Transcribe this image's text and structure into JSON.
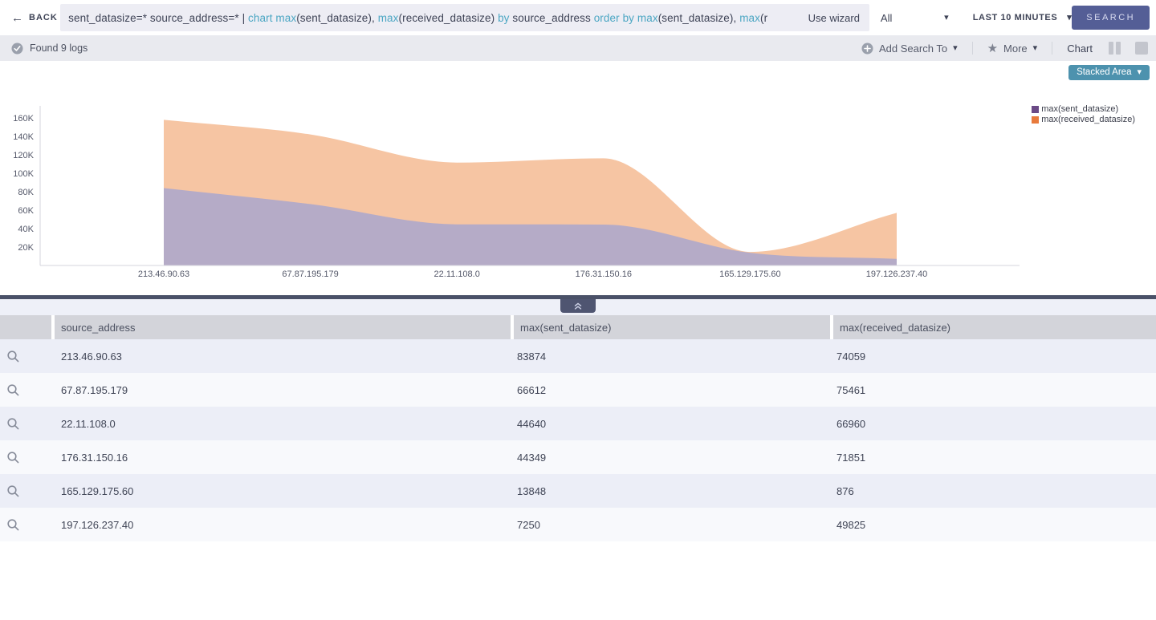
{
  "topbar": {
    "back_label": "BACK",
    "query_segments": [
      {
        "text": "sent_datasize=* source_address=* | ",
        "style": "dark"
      },
      {
        "text": "chart max",
        "style": "teal"
      },
      {
        "text": "(sent_datasize), ",
        "style": "dark"
      },
      {
        "text": "max",
        "style": "teal"
      },
      {
        "text": "(received_datasize) ",
        "style": "dark"
      },
      {
        "text": "by ",
        "style": "teal"
      },
      {
        "text": "source_address ",
        "style": "dark"
      },
      {
        "text": "order by max",
        "style": "teal"
      },
      {
        "text": "(sent_datasize), ",
        "style": "dark"
      },
      {
        "text": "max",
        "style": "teal"
      },
      {
        "text": "(r",
        "style": "dark"
      }
    ],
    "use_wizard_label": "Use wizard",
    "source_filter_value": "All",
    "time_range_value": "LAST 10 MINUTES",
    "search_button_label": "SEARCH"
  },
  "results_bar": {
    "status_text": "Found 9 logs",
    "add_search_to_label": "Add Search To",
    "more_label": "More",
    "view_label": "Chart"
  },
  "chart": {
    "type_selector_label": "Stacked Area"
  },
  "chart_data": {
    "type": "area",
    "stacked": true,
    "title": "",
    "xlabel": "",
    "ylabel": "",
    "grid": false,
    "legend_position": "top-right",
    "categories": [
      "213.46.90.63",
      "67.87.195.179",
      "22.11.108.0",
      "176.31.150.16",
      "165.129.175.60",
      "197.126.237.40"
    ],
    "series": [
      {
        "name": "max(sent_datasize)",
        "values": [
          83874,
          66612,
          44640,
          44349,
          13848,
          7250
        ],
        "legend_color": "#6b4a86",
        "fill_color": "#b5abc7"
      },
      {
        "name": "max(received_datasize)",
        "values": [
          74059,
          75461,
          66960,
          71851,
          876,
          49825
        ],
        "legend_color": "#e87a3c",
        "fill_color": "#f6c5a3"
      }
    ],
    "ylim": [
      0,
      175000
    ],
    "y_ticks": [
      {
        "value": 20000,
        "label": "20K"
      },
      {
        "value": 40000,
        "label": "40K"
      },
      {
        "value": 60000,
        "label": "60K"
      },
      {
        "value": 80000,
        "label": "80K"
      },
      {
        "value": 100000,
        "label": "100K"
      },
      {
        "value": 120000,
        "label": "120K"
      },
      {
        "value": 140000,
        "label": "140K"
      },
      {
        "value": 160000,
        "label": "160K"
      }
    ]
  },
  "table": {
    "columns": [
      "source_address",
      "max(sent_datasize)",
      "max(received_datasize)"
    ],
    "rows": [
      [
        "213.46.90.63",
        "83874",
        "74059"
      ],
      [
        "67.87.195.179",
        "66612",
        "75461"
      ],
      [
        "22.11.108.0",
        "44640",
        "66960"
      ],
      [
        "176.31.150.16",
        "44349",
        "71851"
      ],
      [
        "165.129.175.60",
        "13848",
        "876"
      ],
      [
        "197.126.237.40",
        "7250",
        "49825"
      ]
    ]
  }
}
